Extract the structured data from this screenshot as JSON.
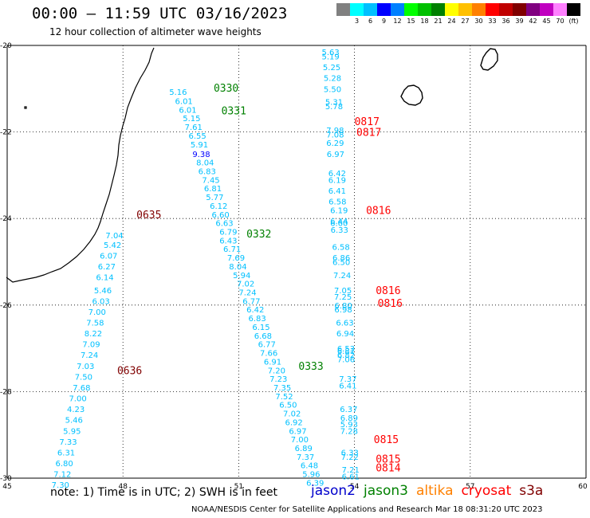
{
  "header": {
    "title": "00:00 – 11:59 UTC 03/16/2023",
    "subtitle": "12 hour collection of altimeter wave heights"
  },
  "colorbar": {
    "colors": [
      "#808080",
      "#00ffff",
      "#00c0ff",
      "#0000ff",
      "#0080ff",
      "#00ff00",
      "#00c000",
      "#008000",
      "#ffff00",
      "#ffc000",
      "#ff8000",
      "#ff0000",
      "#c00000",
      "#800000",
      "#800080",
      "#c000c0",
      "#ff80ff",
      "#000000"
    ],
    "labels": [
      "",
      "3",
      "6",
      "9",
      "12",
      "15",
      "18",
      "21",
      "24",
      "27",
      "30",
      "33",
      "36",
      "39",
      "42",
      "45",
      "70",
      "(ft)"
    ]
  },
  "axes": {
    "x_ticks": [
      "45",
      "48",
      "51",
      "54",
      "57",
      "60"
    ],
    "y_ticks": [
      "-20",
      "-22",
      "-24",
      "-26",
      "-28",
      "-30"
    ]
  },
  "tracks": [
    {
      "points": [
        {
          "lon": 53.15,
          "lat": -20.15,
          "v": "5.63",
          "c": "#00c0ff"
        },
        {
          "lon": 53.15,
          "lat": -20.25,
          "v": "5.19",
          "c": "#00c0ff"
        },
        {
          "lon": 53.18,
          "lat": -20.5,
          "v": "5.25",
          "c": "#00c0ff"
        },
        {
          "lon": 53.2,
          "lat": -20.75,
          "v": "5.28",
          "c": "#00c0ff"
        },
        {
          "lon": 53.2,
          "lat": -21.0,
          "v": "5.50",
          "c": "#00c0ff"
        },
        {
          "lon": 53.24,
          "lat": -21.3,
          "v": "5.31",
          "c": "#00c0ff"
        },
        {
          "lon": 53.24,
          "lat": -21.4,
          "v": "5.78",
          "c": "#00c0ff"
        },
        {
          "lon": 53.27,
          "lat": -21.95,
          "v": "7.98",
          "c": "#00c0ff"
        },
        {
          "lon": 53.27,
          "lat": -22.05,
          "v": "7.08",
          "c": "#00c0ff"
        },
        {
          "lon": 53.27,
          "lat": -22.25,
          "v": "6.29",
          "c": "#00c0ff"
        },
        {
          "lon": 53.28,
          "lat": -22.5,
          "v": "6.97",
          "c": "#00c0ff"
        },
        {
          "lon": 53.32,
          "lat": -22.95,
          "v": "6.42",
          "c": "#00c0ff"
        },
        {
          "lon": 53.32,
          "lat": -23.1,
          "v": "6.19",
          "c": "#00c0ff"
        },
        {
          "lon": 53.32,
          "lat": -23.35,
          "v": "6.41",
          "c": "#00c0ff"
        },
        {
          "lon": 53.33,
          "lat": -23.6,
          "v": "6.58",
          "c": "#00c0ff"
        },
        {
          "lon": 53.37,
          "lat": -23.8,
          "v": "6.19",
          "c": "#00c0ff"
        },
        {
          "lon": 53.37,
          "lat": -24.05,
          "v": "6.44",
          "c": "#00c0ff"
        },
        {
          "lon": 53.37,
          "lat": -24.1,
          "v": "6.60",
          "c": "#00c0ff"
        },
        {
          "lon": 53.38,
          "lat": -24.25,
          "v": "6.33",
          "c": "#00c0ff"
        },
        {
          "lon": 53.42,
          "lat": -24.65,
          "v": "6.58",
          "c": "#00c0ff"
        },
        {
          "lon": 53.43,
          "lat": -24.9,
          "v": "6.86",
          "c": "#00c0ff"
        },
        {
          "lon": 53.43,
          "lat": -25.0,
          "v": "6.50",
          "c": "#00c0ff"
        },
        {
          "lon": 53.45,
          "lat": -25.3,
          "v": "7.24",
          "c": "#00c0ff"
        },
        {
          "lon": 53.47,
          "lat": -25.65,
          "v": "7.05",
          "c": "#00c0ff"
        },
        {
          "lon": 53.47,
          "lat": -25.8,
          "v": "7.25",
          "c": "#00c0ff"
        },
        {
          "lon": 53.48,
          "lat": -26.0,
          "v": "6.80",
          "c": "#00c0ff"
        },
        {
          "lon": 53.48,
          "lat": -26.1,
          "v": "6.98",
          "c": "#00c0ff"
        },
        {
          "lon": 53.52,
          "lat": -26.4,
          "v": "6.63",
          "c": "#00c0ff"
        },
        {
          "lon": 53.53,
          "lat": -26.65,
          "v": "6.94",
          "c": "#00c0ff"
        },
        {
          "lon": 53.55,
          "lat": -27.0,
          "v": "6.53",
          "c": "#00c0ff"
        },
        {
          "lon": 53.55,
          "lat": -27.05,
          "v": "6.81",
          "c": "#00c0ff"
        },
        {
          "lon": 53.55,
          "lat": -27.15,
          "v": "6.82",
          "c": "#00c0ff"
        },
        {
          "lon": 53.55,
          "lat": -27.25,
          "v": "7.06",
          "c": "#00c0ff"
        },
        {
          "lon": 53.6,
          "lat": -27.7,
          "v": "7.37",
          "c": "#00c0ff"
        },
        {
          "lon": 53.6,
          "lat": -27.85,
          "v": "6.41",
          "c": "#00c0ff"
        },
        {
          "lon": 53.62,
          "lat": -28.4,
          "v": "6.37",
          "c": "#00c0ff"
        },
        {
          "lon": 53.63,
          "lat": -28.6,
          "v": "6.89",
          "c": "#00c0ff"
        },
        {
          "lon": 53.63,
          "lat": -28.75,
          "v": "5.93",
          "c": "#00c0ff"
        },
        {
          "lon": 53.63,
          "lat": -28.9,
          "v": "7.28",
          "c": "#00c0ff"
        },
        {
          "lon": 53.65,
          "lat": -29.4,
          "v": "6.33",
          "c": "#00c0ff"
        },
        {
          "lon": 53.65,
          "lat": -29.5,
          "v": "7.22",
          "c": "#00c0ff"
        },
        {
          "lon": 53.67,
          "lat": -29.8,
          "v": "7.21",
          "c": "#00c0ff"
        },
        {
          "lon": 53.67,
          "lat": -29.95,
          "v": "6.61",
          "c": "#00c0ff"
        }
      ]
    },
    {
      "points": [
        {
          "lon": 49.2,
          "lat": -21.07,
          "v": "5.16",
          "c": "#00c0ff"
        },
        {
          "lon": 49.35,
          "lat": -21.28,
          "v": "6.01",
          "c": "#00c0ff"
        },
        {
          "lon": 49.45,
          "lat": -21.48,
          "v": "6.01",
          "c": "#00c0ff"
        },
        {
          "lon": 49.55,
          "lat": -21.68,
          "v": "5.15",
          "c": "#00c0ff"
        },
        {
          "lon": 49.6,
          "lat": -21.88,
          "v": "7.61",
          "c": "#00c0ff"
        },
        {
          "lon": 49.7,
          "lat": -22.08,
          "v": "6.55",
          "c": "#00c0ff"
        },
        {
          "lon": 49.75,
          "lat": -22.28,
          "v": "5.91",
          "c": "#00c0ff"
        },
        {
          "lon": 49.8,
          "lat": -22.5,
          "v": "9.38",
          "c": "#0000ff"
        },
        {
          "lon": 49.9,
          "lat": -22.7,
          "v": "8.04",
          "c": "#00c0ff"
        },
        {
          "lon": 49.95,
          "lat": -22.9,
          "v": "6.83",
          "c": "#00c0ff"
        },
        {
          "lon": 50.05,
          "lat": -23.1,
          "v": "7.45",
          "c": "#00c0ff"
        },
        {
          "lon": 50.1,
          "lat": -23.3,
          "v": "6.81",
          "c": "#00c0ff"
        },
        {
          "lon": 50.15,
          "lat": -23.5,
          "v": "5.77",
          "c": "#00c0ff"
        },
        {
          "lon": 50.25,
          "lat": -23.7,
          "v": "6.12",
          "c": "#00c0ff"
        },
        {
          "lon": 50.3,
          "lat": -23.9,
          "v": "6.60",
          "c": "#00c0ff"
        },
        {
          "lon": 50.4,
          "lat": -24.1,
          "v": "6.63",
          "c": "#00c0ff"
        },
        {
          "lon": 50.5,
          "lat": -24.3,
          "v": "6.79",
          "c": "#00c0ff"
        },
        {
          "lon": 50.5,
          "lat": -24.5,
          "v": "6.43",
          "c": "#00c0ff"
        },
        {
          "lon": 50.6,
          "lat": -24.7,
          "v": "6.71",
          "c": "#00c0ff"
        },
        {
          "lon": 50.7,
          "lat": -24.9,
          "v": "7.69",
          "c": "#00c0ff"
        },
        {
          "lon": 50.75,
          "lat": -25.1,
          "v": "8.04",
          "c": "#00c0ff"
        },
        {
          "lon": 50.85,
          "lat": -25.3,
          "v": "5.94",
          "c": "#00c0ff"
        },
        {
          "lon": 50.95,
          "lat": -25.5,
          "v": "7.02",
          "c": "#00c0ff"
        },
        {
          "lon": 51.0,
          "lat": -25.7,
          "v": "7.24",
          "c": "#00c0ff"
        },
        {
          "lon": 51.1,
          "lat": -25.9,
          "v": "6.77",
          "c": "#00c0ff"
        },
        {
          "lon": 51.2,
          "lat": -26.1,
          "v": "6.42",
          "c": "#00c0ff"
        },
        {
          "lon": 51.25,
          "lat": -26.3,
          "v": "6.83",
          "c": "#00c0ff"
        },
        {
          "lon": 51.35,
          "lat": -26.5,
          "v": "6.15",
          "c": "#00c0ff"
        },
        {
          "lon": 51.4,
          "lat": -26.7,
          "v": "6.68",
          "c": "#00c0ff"
        },
        {
          "lon": 51.5,
          "lat": -26.9,
          "v": "6.77",
          "c": "#00c0ff"
        },
        {
          "lon": 51.55,
          "lat": -27.1,
          "v": "7.66",
          "c": "#00c0ff"
        },
        {
          "lon": 51.65,
          "lat": -27.3,
          "v": "6.91",
          "c": "#00c0ff"
        },
        {
          "lon": 51.75,
          "lat": -27.5,
          "v": "7.20",
          "c": "#00c0ff"
        },
        {
          "lon": 51.8,
          "lat": -27.7,
          "v": "7.23",
          "c": "#00c0ff"
        },
        {
          "lon": 51.9,
          "lat": -27.9,
          "v": "7.35",
          "c": "#00c0ff"
        },
        {
          "lon": 51.95,
          "lat": -28.1,
          "v": "7.52",
          "c": "#00c0ff"
        },
        {
          "lon": 52.05,
          "lat": -28.3,
          "v": "6.50",
          "c": "#00c0ff"
        },
        {
          "lon": 52.15,
          "lat": -28.5,
          "v": "7.02",
          "c": "#00c0ff"
        },
        {
          "lon": 52.2,
          "lat": -28.7,
          "v": "6.92",
          "c": "#00c0ff"
        },
        {
          "lon": 52.3,
          "lat": -28.9,
          "v": "6.97",
          "c": "#00c0ff"
        },
        {
          "lon": 52.35,
          "lat": -29.1,
          "v": "7.00",
          "c": "#00c0ff"
        },
        {
          "lon": 52.45,
          "lat": -29.3,
          "v": "6.89",
          "c": "#00c0ff"
        },
        {
          "lon": 52.5,
          "lat": -29.5,
          "v": "7.37",
          "c": "#00c0ff"
        },
        {
          "lon": 52.6,
          "lat": -29.7,
          "v": "6.48",
          "c": "#00c0ff"
        },
        {
          "lon": 52.65,
          "lat": -29.9,
          "v": "5.96",
          "c": "#00c0ff"
        },
        {
          "lon": 52.75,
          "lat": -30.1,
          "v": "6.39",
          "c": "#00c0ff"
        }
      ]
    },
    {
      "points": [
        {
          "lon": 47.55,
          "lat": -24.38,
          "v": "7.04",
          "c": "#00c0ff"
        },
        {
          "lon": 47.5,
          "lat": -24.6,
          "v": "5.42",
          "c": "#00c0ff"
        },
        {
          "lon": 47.4,
          "lat": -24.85,
          "v": "6.07",
          "c": "#00c0ff"
        },
        {
          "lon": 47.35,
          "lat": -25.1,
          "v": "6.27",
          "c": "#00c0ff"
        },
        {
          "lon": 47.3,
          "lat": -25.35,
          "v": "6.14",
          "c": "#00c0ff"
        },
        {
          "lon": 47.25,
          "lat": -25.65,
          "v": "5.46",
          "c": "#00c0ff"
        },
        {
          "lon": 47.2,
          "lat": -25.9,
          "v": "6.03",
          "c": "#00c0ff"
        },
        {
          "lon": 47.1,
          "lat": -26.15,
          "v": "7.00",
          "c": "#00c0ff"
        },
        {
          "lon": 47.05,
          "lat": -26.4,
          "v": "7.58",
          "c": "#00c0ff"
        },
        {
          "lon": 47.0,
          "lat": -26.65,
          "v": "8.22",
          "c": "#00c0ff"
        },
        {
          "lon": 46.95,
          "lat": -26.9,
          "v": "7.09",
          "c": "#00c0ff"
        },
        {
          "lon": 46.9,
          "lat": -27.15,
          "v": "7.24",
          "c": "#00c0ff"
        },
        {
          "lon": 46.8,
          "lat": -27.4,
          "v": "7.03",
          "c": "#00c0ff"
        },
        {
          "lon": 46.75,
          "lat": -27.65,
          "v": "7.50",
          "c": "#00c0ff"
        },
        {
          "lon": 46.7,
          "lat": -27.9,
          "v": "7.68",
          "c": "#00c0ff"
        },
        {
          "lon": 46.6,
          "lat": -28.15,
          "v": "7.00",
          "c": "#00c0ff"
        },
        {
          "lon": 46.55,
          "lat": -28.4,
          "v": "4.23",
          "c": "#00c0ff"
        },
        {
          "lon": 46.5,
          "lat": -28.65,
          "v": "5.46",
          "c": "#00c0ff"
        },
        {
          "lon": 46.45,
          "lat": -28.9,
          "v": "5.95",
          "c": "#00c0ff"
        },
        {
          "lon": 46.35,
          "lat": -29.15,
          "v": "7.33",
          "c": "#00c0ff"
        },
        {
          "lon": 46.3,
          "lat": -29.4,
          "v": "6.31",
          "c": "#00c0ff"
        },
        {
          "lon": 46.25,
          "lat": -29.65,
          "v": "6.80",
          "c": "#00c0ff"
        },
        {
          "lon": 46.2,
          "lat": -29.9,
          "v": "7.12",
          "c": "#00c0ff"
        },
        {
          "lon": 46.15,
          "lat": -30.15,
          "v": "7.30",
          "c": "#00c0ff"
        }
      ]
    }
  ],
  "time_labels": [
    {
      "lon": 50.35,
      "lat": -20.98,
      "t": "0330",
      "c": "#008000"
    },
    {
      "lon": 50.55,
      "lat": -21.5,
      "t": "0331",
      "c": "#008000"
    },
    {
      "lon": 51.2,
      "lat": -24.35,
      "t": "0332",
      "c": "#008000"
    },
    {
      "lon": 52.55,
      "lat": -27.4,
      "t": "0333",
      "c": "#008000"
    },
    {
      "lon": 48.35,
      "lat": -23.9,
      "t": "0635",
      "c": "#800000"
    },
    {
      "lon": 47.85,
      "lat": -27.5,
      "t": "0636",
      "c": "#800000"
    },
    {
      "lon": 54.0,
      "lat": -21.75,
      "t": "0817",
      "c": "#ff0000"
    },
    {
      "lon": 54.05,
      "lat": -22.0,
      "t": "0817",
      "c": "#ff0000"
    },
    {
      "lon": 54.3,
      "lat": -23.8,
      "t": "0816",
      "c": "#ff0000"
    },
    {
      "lon": 54.55,
      "lat": -25.65,
      "t": "0816",
      "c": "#ff0000"
    },
    {
      "lon": 54.6,
      "lat": -25.95,
      "t": "0816",
      "c": "#ff0000"
    },
    {
      "lon": 54.5,
      "lat": -29.1,
      "t": "0815",
      "c": "#ff0000"
    },
    {
      "lon": 54.55,
      "lat": -29.55,
      "t": "0815",
      "c": "#ff0000"
    },
    {
      "lon": 54.55,
      "lat": -29.75,
      "t": "0814",
      "c": "#ff0000"
    }
  ],
  "footer": {
    "note": "note:  1) Time is in UTC; 2) SWH is in feet",
    "satellites": [
      {
        "name": "jason2",
        "color": "#0000cc"
      },
      {
        "name": "jason3",
        "color": "#008000"
      },
      {
        "name": "altika",
        "color": "#ff8000"
      },
      {
        "name": "cryosat",
        "color": "#ff0000"
      },
      {
        "name": "s3a",
        "color": "#800000"
      }
    ],
    "credit": "NOAA/NESDIS Center for Satellite Applications and Research    Mar 18 08:31:20 UTC 2023"
  }
}
